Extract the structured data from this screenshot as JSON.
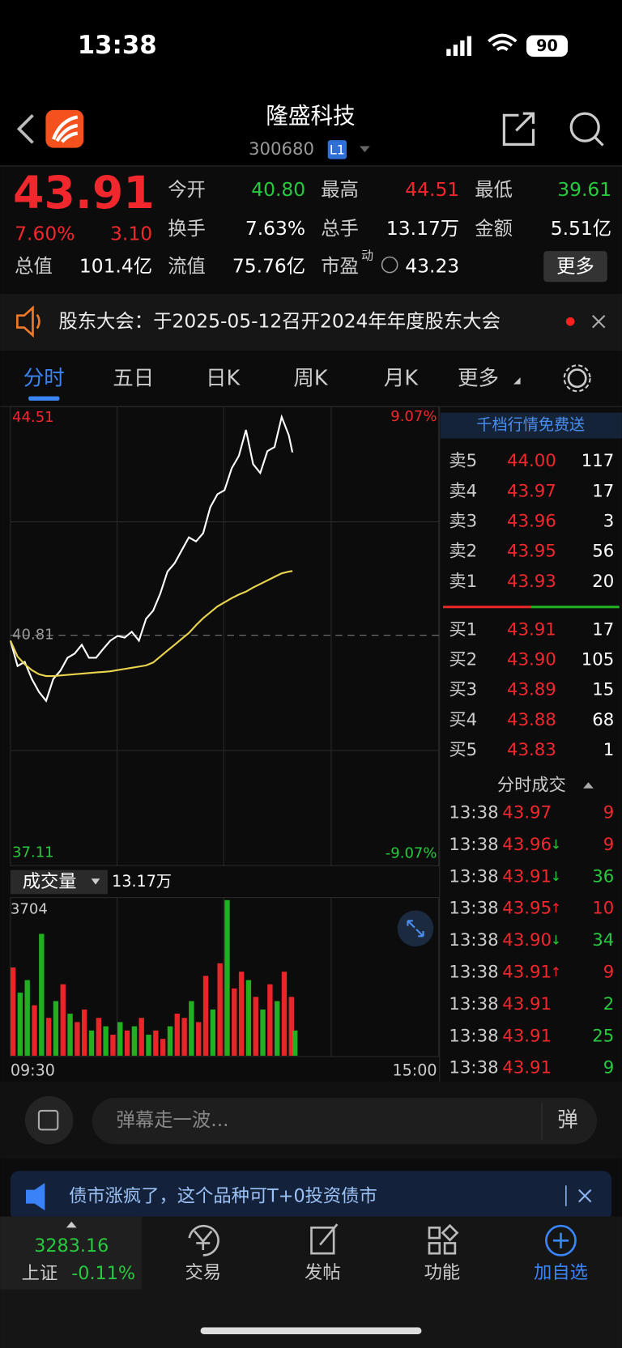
{
  "status_bar": {
    "time": "13:38",
    "battery": "90"
  },
  "header": {
    "title": "隆盛科技",
    "code": "300680",
    "level": "L1"
  },
  "quote": {
    "price": "43.91",
    "change_pct": "7.60%",
    "change": "3.10",
    "fields": [
      {
        "label": "今开",
        "value": "40.80",
        "color": "#27c93f"
      },
      {
        "label": "最高",
        "value": "44.51",
        "color": "#f0282d"
      },
      {
        "label": "最低",
        "value": "39.61",
        "color": "#27c93f"
      },
      {
        "label": "换手",
        "value": "7.63%"
      },
      {
        "label": "总手",
        "value": "13.17万"
      },
      {
        "label": "金额",
        "value": "5.51亿"
      },
      {
        "label": "总值",
        "value": "101.4亿"
      },
      {
        "label": "流值",
        "value": "75.76亿"
      },
      {
        "label": "市盈",
        "sup": "动",
        "value": "43.23"
      }
    ],
    "more": "更多"
  },
  "notice": "股东大会：于2025-05-12召开2024年年度股东大会",
  "tabs": [
    "分时",
    "五日",
    "日K",
    "周K",
    "月K",
    "更多"
  ],
  "chart_data": [
    {
      "type": "line",
      "xlim": [
        0,
        240
      ],
      "ylim": [
        37.11,
        44.51
      ],
      "yticks": [
        37.11,
        40.81,
        44.51
      ],
      "y2lim": [
        -9.07,
        9.07
      ],
      "y2ticks": [
        {
          "value": -9.07,
          "label": "-9.07%"
        },
        {
          "value": 9.07,
          "label": "9.07%"
        }
      ],
      "x": [
        0,
        4,
        8,
        12,
        16,
        20,
        24,
        28,
        32,
        36,
        40,
        44,
        48,
        52,
        56,
        60,
        64,
        68,
        72,
        76,
        80,
        84,
        88,
        92,
        96,
        100,
        104,
        108,
        112,
        116,
        120,
        124,
        128,
        132,
        136,
        140,
        144,
        148,
        152,
        156,
        158
      ],
      "series": [
        {
          "color": "#ffffff",
          "values": [
            40.72,
            40.29,
            40.36,
            40.07,
            39.85,
            39.7,
            40.07,
            40.21,
            40.43,
            40.5,
            40.65,
            40.43,
            40.43,
            40.58,
            40.72,
            40.8,
            40.77,
            40.87,
            40.72,
            41.09,
            41.23,
            41.52,
            41.89,
            42.03,
            42.25,
            42.47,
            42.4,
            42.54,
            42.98,
            43.2,
            43.27,
            43.64,
            43.85,
            44.29,
            43.71,
            43.56,
            43.93,
            44.0,
            44.51,
            44.2,
            43.91
          ]
        },
        {
          "color": "#e8d44d",
          "values": [
            40.72,
            40.45,
            40.32,
            40.22,
            40.15,
            40.12,
            40.12,
            40.13,
            40.14,
            40.15,
            40.16,
            40.17,
            40.18,
            40.19,
            40.2,
            40.22,
            40.24,
            40.26,
            40.28,
            40.3,
            40.35,
            40.45,
            40.55,
            40.65,
            40.75,
            40.85,
            40.98,
            41.1,
            41.2,
            41.3,
            41.37,
            41.44,
            41.5,
            41.55,
            41.62,
            41.68,
            41.74,
            41.8,
            41.86,
            41.89,
            41.9
          ]
        }
      ]
    },
    {
      "type": "bar",
      "title": "成交量",
      "annotation": "13.17万",
      "xlim": [
        0,
        240
      ],
      "ylim": [
        0,
        3704
      ],
      "yticks": [
        3704
      ],
      "xticks": [
        {
          "value": 0,
          "label": "09:30"
        },
        {
          "value": 240,
          "label": "15:00"
        }
      ],
      "x": [
        0,
        4,
        8,
        12,
        16,
        20,
        24,
        28,
        32,
        36,
        40,
        44,
        48,
        52,
        56,
        60,
        64,
        68,
        72,
        76,
        80,
        84,
        88,
        92,
        96,
        100,
        104,
        108,
        112,
        116,
        120,
        124,
        128,
        132,
        136,
        140,
        144,
        148,
        152,
        156,
        158
      ],
      "values": [
        2100,
        1500,
        1800,
        1200,
        2900,
        900,
        1300,
        1700,
        1000,
        800,
        1100,
        600,
        900,
        700,
        500,
        800,
        600,
        700,
        900,
        500,
        600,
        400,
        700,
        1000,
        900,
        1300,
        800,
        1900,
        1100,
        2200,
        3704,
        1600,
        2000,
        1800,
        1400,
        1100,
        1700,
        1300,
        2000,
        1400,
        600
      ],
      "colors": [
        "#e8262a",
        "#22b022",
        "#22b022",
        "#e8262a",
        "#22b022",
        "#e8262a",
        "#22b022",
        "#e8262a",
        "#22b022",
        "#e8262a",
        "#e8262a",
        "#22b022",
        "#e8262a",
        "#22b022",
        "#e8262a",
        "#22b022",
        "#e8262a",
        "#22b022",
        "#e8262a",
        "#22b022",
        "#e8262a",
        "#e8262a",
        "#22b022",
        "#e8262a",
        "#e8262a",
        "#22b022",
        "#e8262a",
        "#e8262a",
        "#22b022",
        "#e8262a",
        "#22b022",
        "#e8262a",
        "#e8262a",
        "#22b022",
        "#e8262a",
        "#22b022",
        "#e8262a",
        "#22b022",
        "#e8262a",
        "#e8262a",
        "#22b022"
      ]
    }
  ],
  "promo": "千档行情免费送",
  "order_book": {
    "asks": [
      {
        "label": "卖5",
        "price": "44.00",
        "volume": "117"
      },
      {
        "label": "卖4",
        "price": "43.97",
        "volume": "17"
      },
      {
        "label": "卖3",
        "price": "43.96",
        "volume": "3"
      },
      {
        "label": "卖2",
        "price": "43.95",
        "volume": "56"
      },
      {
        "label": "卖1",
        "price": "43.93",
        "volume": "20"
      }
    ],
    "bids": [
      {
        "label": "买1",
        "price": "43.91",
        "volume": "17"
      },
      {
        "label": "买2",
        "price": "43.90",
        "volume": "105"
      },
      {
        "label": "买3",
        "price": "43.89",
        "volume": "15"
      },
      {
        "label": "买4",
        "price": "43.88",
        "volume": "68"
      },
      {
        "label": "买5",
        "price": "43.83",
        "volume": "1"
      }
    ]
  },
  "trades": {
    "title": "分时成交",
    "rows": [
      {
        "time": "13:38",
        "price": "43.97",
        "volume": "9",
        "color": "#f0282d"
      },
      {
        "time": "13:38",
        "price": "43.96",
        "arrow": "↓",
        "volume": "9",
        "color": "#f0282d"
      },
      {
        "time": "13:38",
        "price": "43.91",
        "arrow": "↓",
        "volume": "36",
        "color": "#27c93f"
      },
      {
        "time": "13:38",
        "price": "43.95",
        "arrow": "↑",
        "volume": "10",
        "color": "#f0282d"
      },
      {
        "time": "13:38",
        "price": "43.90",
        "arrow": "↓",
        "volume": "34",
        "color": "#27c93f"
      },
      {
        "time": "13:38",
        "price": "43.91",
        "arrow": "↑",
        "volume": "9",
        "color": "#f0282d"
      },
      {
        "time": "13:38",
        "price": "43.91",
        "volume": "2",
        "color": "#27c93f"
      },
      {
        "time": "13:38",
        "price": "43.91",
        "volume": "25",
        "color": "#27c93f"
      },
      {
        "time": "13:38",
        "price": "43.91",
        "volume": "9",
        "color": "#27c93f"
      }
    ]
  },
  "comment": {
    "placeholder": "弹幕走一波...",
    "button": "弹"
  },
  "banner": "债市涨疯了，这个品种可T+0投资债市",
  "bottom_nav": {
    "index_value": "3283.16",
    "index_name": "上证",
    "index_change": "-0.11%",
    "items": [
      "交易",
      "发帖",
      "功能",
      "加自选"
    ]
  }
}
